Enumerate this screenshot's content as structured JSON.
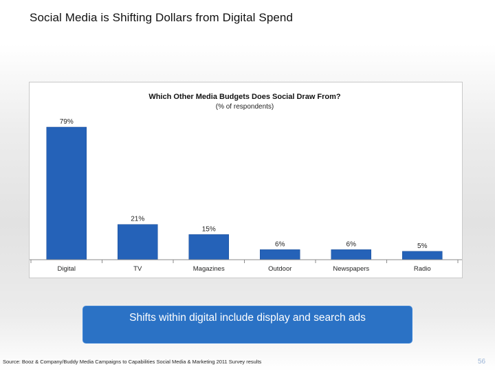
{
  "slide": {
    "title": "Social Media is Shifting Dollars from Digital Spend",
    "callout": "Shifts within digital include display and search ads",
    "source": "Source: Booz & Company/Buddy Media Campaigns to Capabilities Social Media & Marketing 2011 Survey results",
    "page_number": "56"
  },
  "colors": {
    "bar": "#2562b8",
    "bar_edge": "#1c4f99",
    "axis": "#8a8a8a",
    "callout_bg": "#2b72c5"
  },
  "chart_data": {
    "type": "bar",
    "title": "Which Other Media Budgets Does Social Draw From?",
    "subtitle": "(% of respondents)",
    "categories": [
      "Digital",
      "TV",
      "Magazines",
      "Outdoor",
      "Newspapers",
      "Radio"
    ],
    "values": [
      79,
      21,
      15,
      6,
      6,
      5
    ],
    "value_labels": [
      "79%",
      "21%",
      "15%",
      "6%",
      "6%",
      "5%"
    ],
    "xlabel": "",
    "ylabel": "",
    "ylim": [
      0,
      79
    ],
    "grid": false,
    "legend": "none"
  }
}
